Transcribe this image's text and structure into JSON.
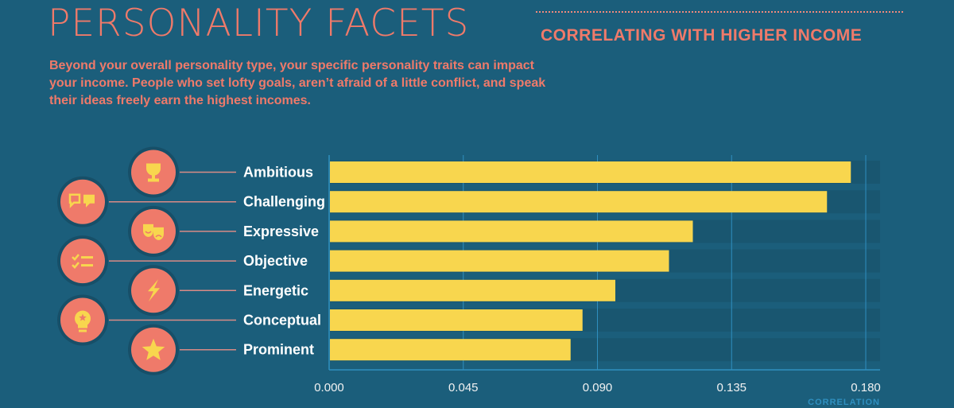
{
  "header": {
    "title": "PERSONALITY FACETS",
    "subtitle": "CORRELATING WITH HIGHER INCOME",
    "description": "Beyond your overall personality type, your specific personality traits can impact your income. People who set lofty goals, aren’t afraid of a little conflict, and speak their ideas freely earn the highest incomes."
  },
  "colors": {
    "background": "#1b5e7b",
    "accent": "#ef7a6a",
    "bar": "#f8d64e",
    "track": "#195670",
    "grid": "#2f8fbf",
    "icon_circle": "#ef7a6a",
    "icon_glyph": "#f8d64e"
  },
  "chart_data": {
    "type": "bar",
    "orientation": "horizontal",
    "title": "Personality Facets Correlating with Higher Income",
    "xlabel": "CORRELATION",
    "ylabel": "",
    "categories": [
      "Ambitious",
      "Challenging",
      "Expressive",
      "Objective",
      "Energetic",
      "Conceptual",
      "Prominent"
    ],
    "values": [
      0.175,
      0.167,
      0.122,
      0.114,
      0.096,
      0.085,
      0.081
    ],
    "icons": [
      "trophy-icon",
      "speech-bubbles-icon",
      "theater-masks-icon",
      "checklist-icon",
      "lightning-icon",
      "lightbulb-icon",
      "star-icon"
    ],
    "xlim": [
      0,
      0.185
    ],
    "xticks": [
      0,
      0.045,
      0.09,
      0.135,
      0.18
    ],
    "xtick_labels": [
      "0.000",
      "0.045",
      "0.090",
      "0.135",
      "0.180"
    ],
    "grid": true,
    "legend": "none"
  }
}
